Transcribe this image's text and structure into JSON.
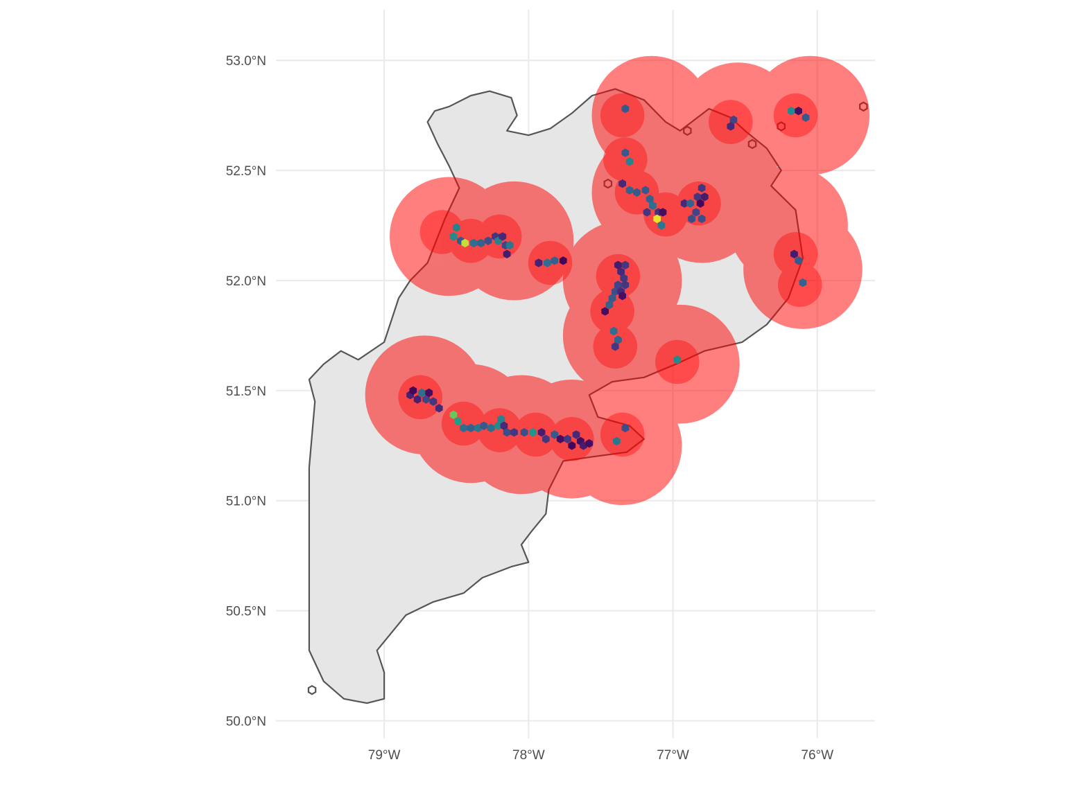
{
  "chart_data": {
    "type": "map",
    "x_axis": {
      "range": [
        -79.75,
        -75.6
      ],
      "ticks": [
        {
          "value": -79,
          "label": "79°W"
        },
        {
          "value": -78,
          "label": "78°W"
        },
        {
          "value": -77,
          "label": "77°W"
        },
        {
          "value": -76,
          "label": "76°W"
        }
      ]
    },
    "y_axis": {
      "range": [
        49.92,
        53.23
      ],
      "ticks": [
        {
          "value": 50.0,
          "label": "50.0°N"
        },
        {
          "value": 50.5,
          "label": "50.5°N"
        },
        {
          "value": 51.0,
          "label": "51.0°N"
        },
        {
          "value": 51.5,
          "label": "51.5°N"
        },
        {
          "value": 52.0,
          "label": "52.0°N"
        },
        {
          "value": 52.5,
          "label": "52.5°N"
        },
        {
          "value": 53.0,
          "label": "53.0°N"
        }
      ]
    },
    "grid": true,
    "region": {
      "fill": "#e6e6e6",
      "outline": "#555555",
      "outline_points": [
        [
          -78.65,
          52.77
        ],
        [
          -78.55,
          52.79
        ],
        [
          -78.4,
          52.84
        ],
        [
          -78.27,
          52.86
        ],
        [
          -78.12,
          52.83
        ],
        [
          -78.08,
          52.75
        ],
        [
          -78.15,
          52.68
        ],
        [
          -78.0,
          52.66
        ],
        [
          -77.85,
          52.69
        ],
        [
          -77.7,
          52.76
        ],
        [
          -77.56,
          52.84
        ],
        [
          -77.4,
          52.87
        ],
        [
          -77.2,
          52.82
        ],
        [
          -77.05,
          52.72
        ],
        [
          -76.95,
          52.68
        ],
        [
          -76.75,
          52.78
        ],
        [
          -76.6,
          52.74
        ],
        [
          -76.5,
          52.68
        ],
        [
          -76.35,
          52.6
        ],
        [
          -76.25,
          52.5
        ],
        [
          -76.32,
          52.43
        ],
        [
          -76.15,
          52.32
        ],
        [
          -76.1,
          52.1
        ],
        [
          -76.2,
          51.92
        ],
        [
          -76.35,
          51.8
        ],
        [
          -76.52,
          51.72
        ],
        [
          -76.78,
          51.68
        ],
        [
          -76.98,
          51.62
        ],
        [
          -77.2,
          51.56
        ],
        [
          -77.42,
          51.54
        ],
        [
          -77.58,
          51.48
        ],
        [
          -77.52,
          51.38
        ],
        [
          -77.3,
          51.34
        ],
        [
          -77.2,
          51.28
        ],
        [
          -77.32,
          51.22
        ],
        [
          -77.55,
          51.2
        ],
        [
          -77.76,
          51.18
        ],
        [
          -77.86,
          51.05
        ],
        [
          -77.88,
          50.94
        ],
        [
          -77.98,
          50.86
        ],
        [
          -78.05,
          50.8
        ],
        [
          -78.0,
          50.72
        ],
        [
          -78.12,
          50.7
        ],
        [
          -78.32,
          50.65
        ],
        [
          -78.45,
          50.58
        ],
        [
          -78.66,
          50.54
        ],
        [
          -78.85,
          50.48
        ],
        [
          -78.95,
          50.4
        ],
        [
          -79.05,
          50.32
        ],
        [
          -79.0,
          50.22
        ],
        [
          -79.0,
          50.1
        ],
        [
          -79.12,
          50.08
        ],
        [
          -79.28,
          50.1
        ],
        [
          -79.42,
          50.18
        ],
        [
          -79.52,
          50.32
        ],
        [
          -79.52,
          50.55
        ],
        [
          -79.52,
          50.85
        ],
        [
          -79.52,
          51.15
        ],
        [
          -79.48,
          51.45
        ],
        [
          -79.52,
          51.55
        ],
        [
          -79.42,
          51.62
        ],
        [
          -79.3,
          51.68
        ],
        [
          -79.18,
          51.64
        ],
        [
          -79.0,
          51.72
        ],
        [
          -78.95,
          51.82
        ],
        [
          -78.9,
          51.92
        ],
        [
          -78.82,
          52.0
        ],
        [
          -78.7,
          52.08
        ],
        [
          -78.58,
          52.28
        ],
        [
          -78.48,
          52.42
        ],
        [
          -78.55,
          52.52
        ],
        [
          -78.63,
          52.62
        ],
        [
          -78.7,
          52.72
        ]
      ],
      "islands": [
        [
          -76.25,
          52.7
        ],
        [
          -76.45,
          52.62
        ],
        [
          -76.9,
          52.68
        ],
        [
          -77.45,
          52.44
        ],
        [
          -75.68,
          52.79
        ],
        [
          -79.5,
          50.14
        ]
      ]
    },
    "buffer_zones": {
      "outer_color": "#ff0000",
      "outer_opacity": 0.5,
      "inner_color": "#ff0000",
      "inner_opacity": 0.4,
      "outer_radius_deg_lat": 0.27,
      "inner_radius_deg_lat": 0.1,
      "outer_centers": [
        [
          -78.55,
          52.2
        ],
        [
          -78.1,
          52.18
        ],
        [
          -76.05,
          52.75
        ],
        [
          -76.55,
          52.72
        ],
        [
          -77.15,
          52.75
        ],
        [
          -77.15,
          52.4
        ],
        [
          -76.8,
          52.35
        ],
        [
          -77.35,
          52.0
        ],
        [
          -77.35,
          51.75
        ],
        [
          -76.95,
          51.62
        ],
        [
          -76.1,
          52.05
        ],
        [
          -76.2,
          52.25
        ],
        [
          -78.72,
          51.48
        ],
        [
          -78.4,
          51.35
        ],
        [
          -78.05,
          51.3
        ],
        [
          -77.7,
          51.28
        ],
        [
          -77.35,
          51.25
        ]
      ],
      "inner_centers": [
        [
          -78.6,
          52.22
        ],
        [
          -78.4,
          52.18
        ],
        [
          -78.2,
          52.2
        ],
        [
          -77.85,
          52.08
        ],
        [
          -77.35,
          52.75
        ],
        [
          -77.33,
          52.55
        ],
        [
          -77.25,
          52.4
        ],
        [
          -77.05,
          52.3
        ],
        [
          -76.82,
          52.35
        ],
        [
          -76.6,
          52.72
        ],
        [
          -76.15,
          52.75
        ],
        [
          -77.38,
          52.02
        ],
        [
          -77.42,
          51.86
        ],
        [
          -77.4,
          51.7
        ],
        [
          -76.97,
          51.63
        ],
        [
          -76.15,
          52.12
        ],
        [
          -76.12,
          51.98
        ],
        [
          -78.75,
          51.47
        ],
        [
          -78.45,
          51.35
        ],
        [
          -78.2,
          51.32
        ],
        [
          -77.95,
          51.3
        ],
        [
          -77.7,
          51.28
        ],
        [
          -77.35,
          51.3
        ]
      ]
    },
    "hex_cells": {
      "palette": "viridis",
      "value_range": [
        0,
        1
      ],
      "cells": [
        [
          -78.5,
          52.24,
          0.55
        ],
        [
          -78.52,
          52.2,
          0.6
        ],
        [
          -78.47,
          52.18,
          0.35
        ],
        [
          -78.44,
          52.17,
          0.95
        ],
        [
          -78.38,
          52.17,
          0.45
        ],
        [
          -78.33,
          52.17,
          0.4
        ],
        [
          -78.28,
          52.18,
          0.3
        ],
        [
          -78.23,
          52.2,
          0.2
        ],
        [
          -78.21,
          52.18,
          0.55
        ],
        [
          -78.18,
          52.2,
          0.15
        ],
        [
          -78.16,
          52.16,
          0.25
        ],
        [
          -78.13,
          52.16,
          0.5
        ],
        [
          -78.15,
          52.12,
          0.1
        ],
        [
          -77.93,
          52.08,
          0.12
        ],
        [
          -77.87,
          52.08,
          0.45
        ],
        [
          -77.82,
          52.09,
          0.4
        ],
        [
          -77.76,
          52.09,
          0.02
        ],
        [
          -77.33,
          52.78,
          0.35
        ],
        [
          -77.33,
          52.58,
          0.35
        ],
        [
          -77.3,
          52.54,
          0.55
        ],
        [
          -77.35,
          52.44,
          0.15
        ],
        [
          -77.3,
          52.41,
          0.4
        ],
        [
          -77.25,
          52.4,
          0.35
        ],
        [
          -77.19,
          52.41,
          0.35
        ],
        [
          -77.16,
          52.37,
          0.4
        ],
        [
          -77.14,
          52.34,
          0.45
        ],
        [
          -77.1,
          52.31,
          0.18
        ],
        [
          -77.18,
          52.31,
          0.2
        ],
        [
          -77.07,
          52.31,
          0.05
        ],
        [
          -77.11,
          52.28,
          0.98
        ],
        [
          -77.08,
          52.25,
          0.5
        ],
        [
          -76.92,
          52.35,
          0.15
        ],
        [
          -76.88,
          52.35,
          0.4
        ],
        [
          -76.83,
          52.38,
          0.2
        ],
        [
          -76.8,
          52.42,
          0.2
        ],
        [
          -76.78,
          52.38,
          0.1
        ],
        [
          -76.81,
          52.35,
          0.02
        ],
        [
          -76.84,
          52.31,
          0.25
        ],
        [
          -76.87,
          52.28,
          0.3
        ],
        [
          -76.8,
          52.28,
          0.3
        ],
        [
          -76.58,
          52.73,
          0.25
        ],
        [
          -76.6,
          52.7,
          0.15
        ],
        [
          -76.18,
          52.77,
          0.6
        ],
        [
          -76.13,
          52.77,
          0.05
        ],
        [
          -76.08,
          52.74,
          0.35
        ],
        [
          -77.38,
          52.07,
          0.1
        ],
        [
          -77.33,
          52.07,
          0.2
        ],
        [
          -77.36,
          52.04,
          0.15
        ],
        [
          -77.34,
          52.01,
          0.2
        ],
        [
          -77.38,
          51.98,
          0.25
        ],
        [
          -77.33,
          51.98,
          0.2
        ],
        [
          -77.4,
          51.95,
          0.3
        ],
        [
          -77.36,
          51.95,
          0.15
        ],
        [
          -77.35,
          51.93,
          0.05
        ],
        [
          -77.42,
          51.92,
          0.35
        ],
        [
          -77.44,
          51.89,
          0.4
        ],
        [
          -77.47,
          51.86,
          0.05
        ],
        [
          -77.41,
          51.77,
          0.45
        ],
        [
          -77.38,
          51.73,
          0.4
        ],
        [
          -77.4,
          51.7,
          0.2
        ],
        [
          -76.97,
          51.64,
          0.6
        ],
        [
          -76.16,
          52.12,
          0.1
        ],
        [
          -76.13,
          52.09,
          0.35
        ],
        [
          -76.1,
          51.99,
          0.4
        ],
        [
          -78.82,
          51.48,
          0.12
        ],
        [
          -78.8,
          51.5,
          0.02
        ],
        [
          -78.77,
          51.46,
          0.12
        ],
        [
          -78.74,
          51.49,
          0.45
        ],
        [
          -78.71,
          51.46,
          0.25
        ],
        [
          -78.69,
          51.49,
          0.05
        ],
        [
          -78.66,
          51.45,
          0.2
        ],
        [
          -78.62,
          51.42,
          0.15
        ],
        [
          -78.52,
          51.39,
          0.85
        ],
        [
          -78.49,
          51.36,
          0.7
        ],
        [
          -78.45,
          51.33,
          0.45
        ],
        [
          -78.4,
          51.33,
          0.4
        ],
        [
          -78.35,
          51.33,
          0.5
        ],
        [
          -78.31,
          51.34,
          0.35
        ],
        [
          -78.26,
          51.33,
          0.45
        ],
        [
          -78.21,
          51.34,
          0.6
        ],
        [
          -78.19,
          51.37,
          0.55
        ],
        [
          -78.17,
          51.34,
          0.15
        ],
        [
          -78.15,
          51.31,
          0.3
        ],
        [
          -78.1,
          51.31,
          0.2
        ],
        [
          -78.03,
          51.31,
          0.3
        ],
        [
          -77.97,
          51.31,
          0.65
        ],
        [
          -77.91,
          51.31,
          0.1
        ],
        [
          -77.88,
          51.28,
          0.2
        ],
        [
          -77.82,
          51.3,
          0.35
        ],
        [
          -77.78,
          51.28,
          0.05
        ],
        [
          -77.73,
          51.28,
          0.2
        ],
        [
          -77.67,
          51.3,
          0.15
        ],
        [
          -77.64,
          51.27,
          0.05
        ],
        [
          -77.7,
          51.25,
          0.02
        ],
        [
          -77.62,
          51.25,
          0.1
        ],
        [
          -77.58,
          51.26,
          0.05
        ],
        [
          -77.39,
          51.27,
          0.5
        ],
        [
          -77.33,
          51.33,
          0.3
        ]
      ]
    }
  }
}
